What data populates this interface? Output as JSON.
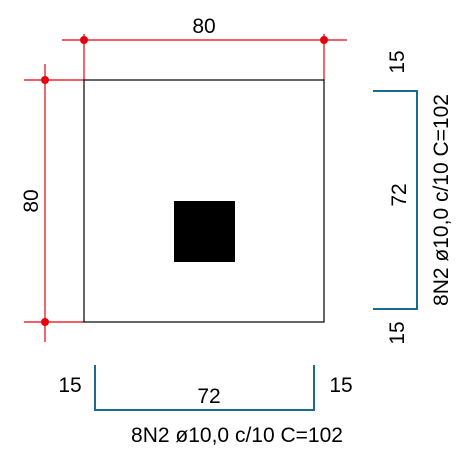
{
  "colors": {
    "background": "#ffffff",
    "outline": "#000000",
    "dimension": "#e8000b",
    "rebar": "#1b6b8f",
    "column": "#000000",
    "text": "#000000"
  },
  "section": {
    "width_label": "80",
    "height_label": "80"
  },
  "rebar_bottom": {
    "left_hook": "15",
    "length": "72",
    "right_hook": "15",
    "label": "8N2 ø10,0 c/10 C=102"
  },
  "rebar_right": {
    "top_hook": "15",
    "length": "72",
    "bottom_hook": "15",
    "label": "8N2 ø10,0 c/10 C=102"
  }
}
